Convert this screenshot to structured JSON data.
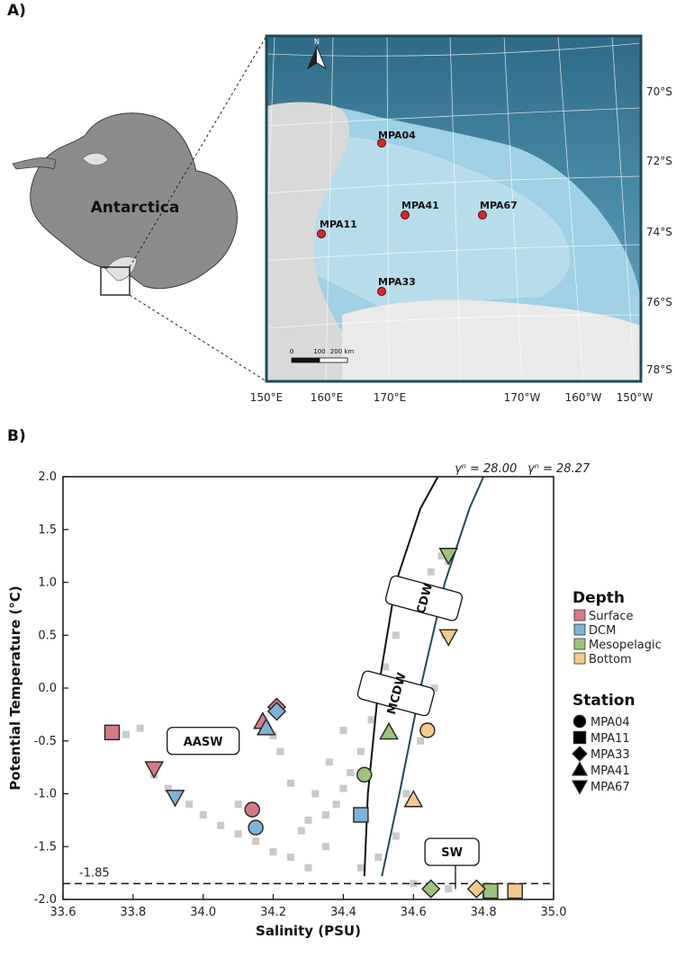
{
  "panel_a": {
    "label": "A)",
    "continent_label": "Antarctica",
    "north_label": "N",
    "stations": [
      {
        "name": "MPA04"
      },
      {
        "name": "MPA41"
      },
      {
        "name": "MPA67"
      },
      {
        "name": "MPA11"
      },
      {
        "name": "MPA33"
      }
    ],
    "lat_labels": [
      "70°S",
      "72°S",
      "74°S",
      "76°S",
      "78°S"
    ],
    "lon_labels": [
      "150°E",
      "160°E",
      "170°E",
      "170°W",
      "160°W",
      "150°W"
    ],
    "scale_labels": [
      "0",
      "100",
      "200 km"
    ],
    "colors": {
      "ocean_deep": "#3f7f9e",
      "ocean_shelf": "#a9d6e8",
      "land": "#8c8c8c",
      "station": "#d42a2a"
    }
  },
  "panel_b": {
    "label": "B)",
    "isopycnal_labels": [
      "γⁿ = 28.00",
      "γⁿ = 28.27"
    ],
    "freezing_label": "-1.85",
    "water_masses": [
      "AASW",
      "CDW",
      "MCDW",
      "SW"
    ],
    "legend": {
      "depth_title": "Depth",
      "depth_items": [
        {
          "label": "Surface",
          "color": "#d67a87"
        },
        {
          "label": "DCM",
          "color": "#7fb3d8"
        },
        {
          "label": "Mesopelagic",
          "color": "#9cc47c"
        },
        {
          "label": "Bottom",
          "color": "#f5c98a"
        }
      ],
      "station_title": "Station",
      "station_items": [
        {
          "label": "MPA04",
          "shape": "circle"
        },
        {
          "label": "MPA11",
          "shape": "square"
        },
        {
          "label": "MPA33",
          "shape": "diamond"
        },
        {
          "label": "MPA41",
          "shape": "triangle-up"
        },
        {
          "label": "MPA67",
          "shape": "triangle-down"
        }
      ]
    }
  },
  "chart_data": {
    "type": "scatter",
    "xlabel": "Salinity (PSU)",
    "ylabel": "Potential Temperature (°C)",
    "xlim": [
      33.6,
      35.0
    ],
    "ylim": [
      -2.0,
      2.0
    ],
    "xticks": [
      "33.6",
      "33.8",
      "34.0",
      "34.2",
      "34.4",
      "34.6",
      "34.8",
      "35.0"
    ],
    "yticks": [
      "2.0",
      "1.5",
      "1.0",
      "0.5",
      "0.0",
      "-0.5",
      "-1.0",
      "-1.5",
      "-2.0"
    ],
    "freezing_line_y": -1.85,
    "isopycnals": [
      {
        "name": "γⁿ = 28.00",
        "color": "#111111",
        "points": [
          [
            34.46,
            -1.78
          ],
          [
            34.47,
            -1.0
          ],
          [
            34.5,
            0.0
          ],
          [
            34.55,
            1.0
          ],
          [
            34.62,
            1.7
          ],
          [
            34.67,
            2.0
          ]
        ]
      },
      {
        "name": "γⁿ = 28.27",
        "color": "#1f4a5a",
        "points": [
          [
            34.51,
            -1.78
          ],
          [
            34.56,
            -1.0
          ],
          [
            34.62,
            0.0
          ],
          [
            34.69,
            1.0
          ],
          [
            34.76,
            1.7
          ],
          [
            34.8,
            2.0
          ]
        ]
      }
    ],
    "ctd_background": [
      [
        33.74,
        -0.42
      ],
      [
        33.78,
        -0.44
      ],
      [
        33.82,
        -0.38
      ],
      [
        33.86,
        -0.82
      ],
      [
        33.9,
        -0.95
      ],
      [
        33.96,
        -1.1
      ],
      [
        34.0,
        -1.2
      ],
      [
        34.05,
        -1.3
      ],
      [
        34.1,
        -1.38
      ],
      [
        34.15,
        -1.45
      ],
      [
        34.2,
        -1.55
      ],
      [
        34.25,
        -1.6
      ],
      [
        34.28,
        -1.35
      ],
      [
        34.3,
        -1.25
      ],
      [
        34.35,
        -1.2
      ],
      [
        34.38,
        -1.1
      ],
      [
        34.4,
        -0.95
      ],
      [
        34.42,
        -0.8
      ],
      [
        34.45,
        -0.6
      ],
      [
        34.48,
        -0.3
      ],
      [
        34.5,
        -0.1
      ],
      [
        34.52,
        0.2
      ],
      [
        34.55,
        0.5
      ],
      [
        34.6,
        0.8
      ],
      [
        34.65,
        1.1
      ],
      [
        34.68,
        1.25
      ],
      [
        34.7,
        1.2
      ],
      [
        34.7,
        0.9
      ],
      [
        34.69,
        0.5
      ],
      [
        34.66,
        0.0
      ],
      [
        34.62,
        -0.5
      ],
      [
        34.58,
        -1.0
      ],
      [
        34.55,
        -1.4
      ],
      [
        34.5,
        -1.6
      ],
      [
        34.45,
        -1.7
      ],
      [
        34.6,
        -1.85
      ],
      [
        34.7,
        -1.9
      ],
      [
        34.8,
        -1.92
      ],
      [
        34.3,
        -1.7
      ],
      [
        34.35,
        -1.5
      ],
      [
        34.25,
        -0.9
      ],
      [
        34.22,
        -0.6
      ],
      [
        34.2,
        -0.45
      ],
      [
        34.18,
        -0.35
      ],
      [
        34.32,
        -1.0
      ],
      [
        34.36,
        -0.7
      ],
      [
        34.4,
        -0.4
      ],
      [
        34.1,
        -1.1
      ]
    ],
    "series": [
      {
        "name": "MPA04",
        "shape": "circle",
        "points": [
          {
            "depth": "Surface",
            "x": 34.14,
            "y": -1.15
          },
          {
            "depth": "DCM",
            "x": 34.15,
            "y": -1.32
          },
          {
            "depth": "Mesopelagic",
            "x": 34.46,
            "y": -0.82
          },
          {
            "depth": "Bottom",
            "x": 34.64,
            "y": -0.4
          }
        ]
      },
      {
        "name": "MPA11",
        "shape": "square",
        "points": [
          {
            "depth": "Surface",
            "x": 33.74,
            "y": -0.42
          },
          {
            "depth": "DCM",
            "x": 34.45,
            "y": -1.2
          },
          {
            "depth": "Mesopelagic",
            "x": 34.82,
            "y": -1.92
          },
          {
            "depth": "Bottom",
            "x": 34.89,
            "y": -1.92
          }
        ]
      },
      {
        "name": "MPA33",
        "shape": "diamond",
        "points": [
          {
            "depth": "Surface",
            "x": 34.21,
            "y": -0.18
          },
          {
            "depth": "DCM",
            "x": 34.21,
            "y": -0.22
          },
          {
            "depth": "Mesopelagic",
            "x": 34.65,
            "y": -1.9
          },
          {
            "depth": "Bottom",
            "x": 34.78,
            "y": -1.9
          }
        ]
      },
      {
        "name": "MPA41",
        "shape": "triangle-up",
        "points": [
          {
            "depth": "Surface",
            "x": 34.17,
            "y": -0.32
          },
          {
            "depth": "DCM",
            "x": 34.18,
            "y": -0.38
          },
          {
            "depth": "Mesopelagic",
            "x": 34.53,
            "y": -0.42
          },
          {
            "depth": "Bottom",
            "x": 34.6,
            "y": -1.06
          }
        ]
      },
      {
        "name": "MPA67",
        "shape": "triangle-down",
        "points": [
          {
            "depth": "Surface",
            "x": 33.86,
            "y": -0.76
          },
          {
            "depth": "DCM",
            "x": 33.92,
            "y": -1.03
          },
          {
            "depth": "Mesopelagic",
            "x": 34.7,
            "y": 1.26
          },
          {
            "depth": "Bottom",
            "x": 34.7,
            "y": 0.49
          }
        ]
      }
    ]
  }
}
